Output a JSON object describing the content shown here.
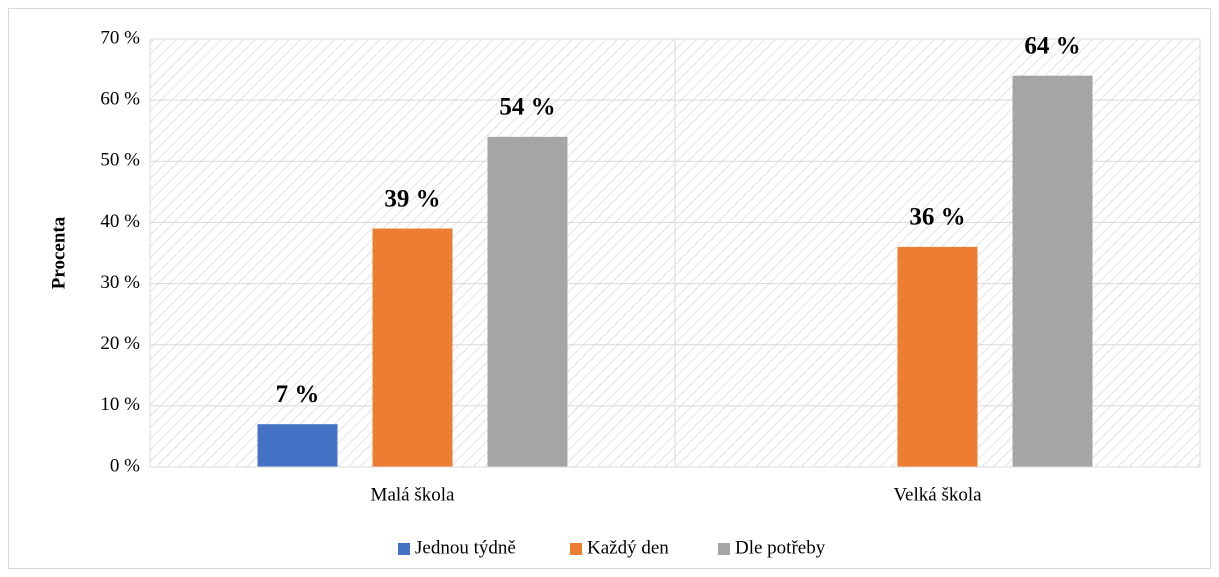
{
  "chart_data": {
    "type": "bar",
    "y_label": "Procenta",
    "categories": [
      "Malá škola",
      "Velká škola"
    ],
    "series": [
      {
        "name": "Jednou týdně",
        "color": "#4472c4",
        "values": [
          7,
          null
        ],
        "value_labels": [
          "7 %",
          null
        ]
      },
      {
        "name": "Každý den",
        "color": "#ed7d31",
        "values": [
          39,
          36
        ],
        "value_labels": [
          "39 %",
          "36 %"
        ]
      },
      {
        "name": "Dle potřeby",
        "color": "#a5a5a5",
        "values": [
          54,
          64
        ],
        "value_labels": [
          "54 %",
          "64 %"
        ]
      }
    ],
    "ylim": [
      0,
      70
    ],
    "yticks": [
      {
        "value": 0,
        "label": "0 %"
      },
      {
        "value": 10,
        "label": "10 %"
      },
      {
        "value": 20,
        "label": "20 %"
      },
      {
        "value": 30,
        "label": "30 %"
      },
      {
        "value": 40,
        "label": "40 %"
      },
      {
        "value": 50,
        "label": "50 %"
      },
      {
        "value": 60,
        "label": "60 %"
      },
      {
        "value": 70,
        "label": "70 %"
      }
    ],
    "grid": true,
    "legend": "bottom"
  }
}
